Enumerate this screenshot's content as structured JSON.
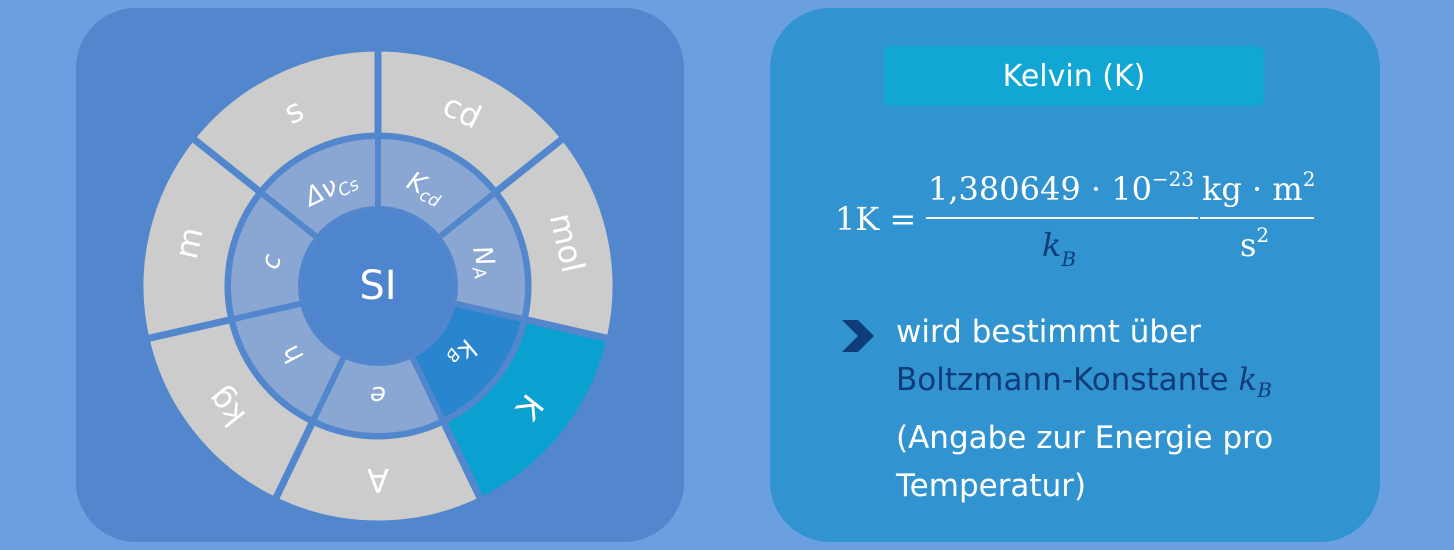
{
  "diagram": {
    "center_label": "SI",
    "outer_segments": [
      {
        "label": "s"
      },
      {
        "label": "cd"
      },
      {
        "label": "mol"
      },
      {
        "label": "K",
        "highlighted": true
      },
      {
        "label": "A"
      },
      {
        "label": "kg"
      },
      {
        "label": "m"
      }
    ],
    "inner_segments": [
      {
        "label": "Δν",
        "sub": "Cs"
      },
      {
        "label": "K",
        "sub": "cd"
      },
      {
        "label": "N",
        "sub": "A"
      },
      {
        "label": "k",
        "sub": "B",
        "highlighted": true
      },
      {
        "label": "e",
        "sub": ""
      },
      {
        "label": "h",
        "sub": ""
      },
      {
        "label": "c",
        "sub": ""
      }
    ],
    "colors": {
      "outer_ring": "#cccccc",
      "inner_ring": "#8aa6d3",
      "highlight_outer": "#0aa0cf",
      "highlight_inner": "#2a85cf",
      "center": "#4f85cf",
      "separator": "#5287cd"
    }
  },
  "info": {
    "title": "Kelvin (K)",
    "formula": {
      "lhs": "1K =",
      "numerator": "1,380649 · 10",
      "exponent": "−23",
      "denominator_symbol": "k",
      "denominator_sub": "B",
      "unit_numerator": "kg · m",
      "unit_numerator_exp": "2",
      "unit_denominator": "s",
      "unit_denominator_exp": "2"
    },
    "bullet_line1": "wird bestimmt über",
    "bullet_line2": "Boltzmann-Konstante",
    "bullet_symbol": "k",
    "bullet_symbol_sub": "B",
    "bullet_line3": "(Angabe zur Energie pro",
    "bullet_line4": "Temperatur)"
  },
  "icons": {
    "bullet": "chevron-right-icon"
  }
}
